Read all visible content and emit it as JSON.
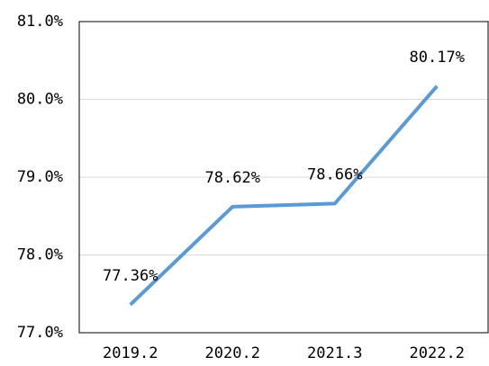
{
  "chart_data": {
    "type": "line",
    "categories": [
      "2019.2",
      "2020.2",
      "2021.3",
      "2022.2"
    ],
    "series": [
      {
        "color": "#5b9bd5",
        "values": [
          77.36,
          78.62,
          78.66,
          80.17
        ],
        "value_labels": [
          "77.36%",
          "78.62%",
          "78.66%",
          "80.17%"
        ]
      }
    ],
    "ylim": [
      77,
      81
    ],
    "yticks": [
      {
        "value": 77,
        "label": "77.0%"
      },
      {
        "value": 78,
        "label": "78.0%"
      },
      {
        "value": 79,
        "label": "79.0%"
      },
      {
        "value": 80,
        "label": "80.0%"
      },
      {
        "value": 81,
        "label": "81.0%"
      }
    ],
    "grid": true
  }
}
